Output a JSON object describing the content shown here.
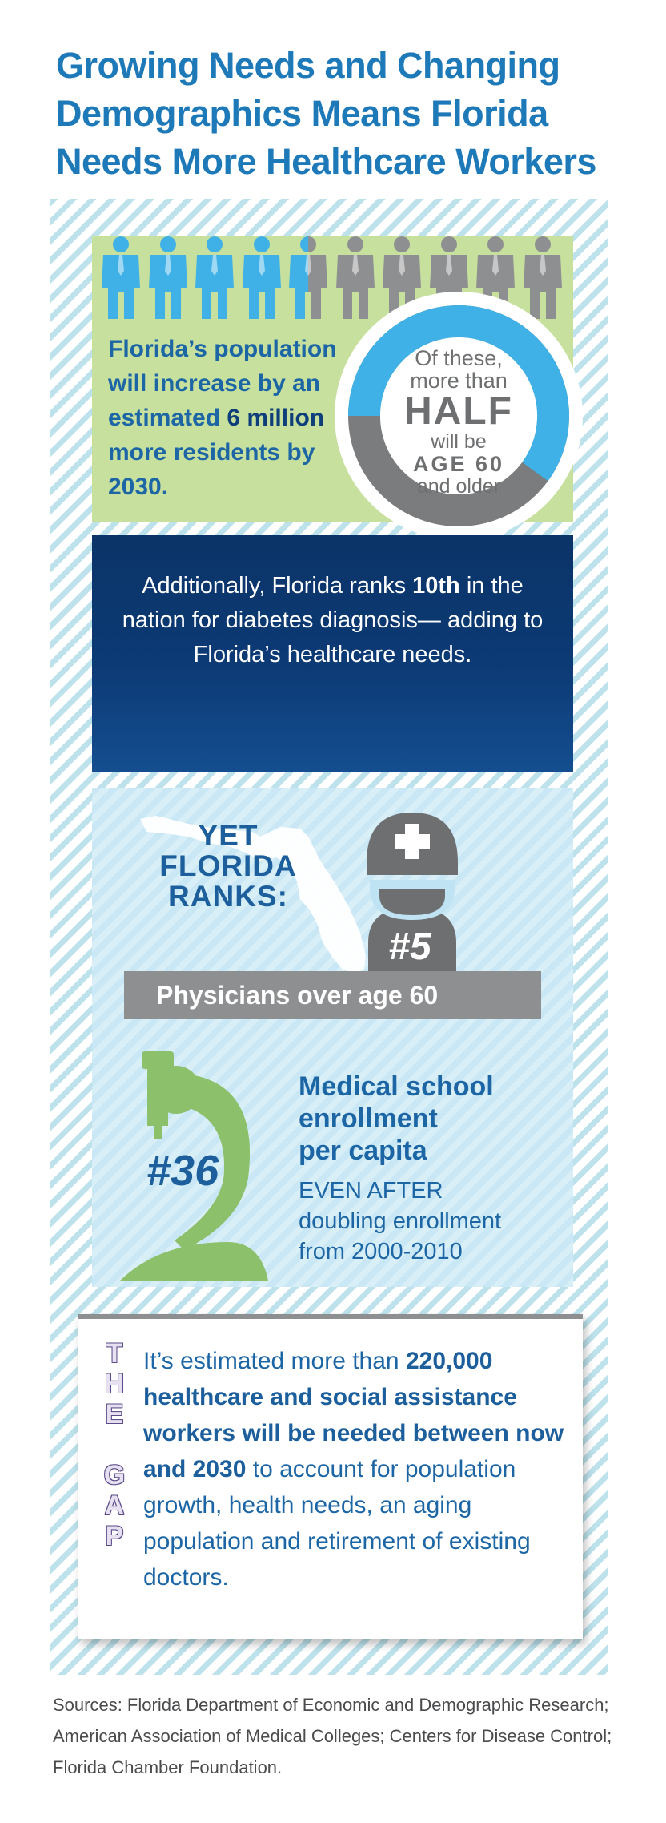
{
  "title": "Growing Needs and Changing\nDemographics Means Florida\nNeeds More Healthcare Workers",
  "colors": {
    "blue_person": "#3fb1e6",
    "gray_person": "#8e8f91",
    "green_panel": "#c7e09e",
    "navy_panel": "#0c3a75"
  },
  "population": {
    "people_total": 10,
    "people_highlighted": 4.5,
    "text_pre": "Florida’s population will increase by an estimated",
    "text_emphasis": "6 million",
    "text_post": "more residents by 2030.",
    "ring_fraction_blue": 0.6
  },
  "ring": {
    "line1": "Of these,",
    "line2": "more than",
    "line3": "HALF",
    "line4": "will be",
    "line5": "AGE 60",
    "line6": "and older"
  },
  "diabetes": {
    "pre": "Additionally, Florida ranks",
    "emphasis": "10th",
    "post": "in the nation for diabetes diagnosis— adding to Florida’s healthcare needs."
  },
  "ranks": {
    "header": "YET\nFLORIDA\nRANKS:",
    "physicians_rank": "#5",
    "physicians_label": "Physicians over age 60",
    "med_rank": "#36",
    "med_title": "Medical school\nenrollment\nper capita",
    "med_sub": "EVEN AFTER\ndoubling enrollment\nfrom 2000-2010"
  },
  "gap": {
    "label": [
      "T",
      "H",
      "E",
      "",
      "G",
      "A",
      "P"
    ],
    "text_pre": "It’s estimated more than",
    "text_bold": "220,000 healthcare and social assistance workers will be needed between now and 2030",
    "text_post": "to account for population growth, health needs, an aging population and retirement of existing doctors."
  },
  "sources": "Sources: Florida Department of Economic and Demographic Research; American Association of Medical Colleges; Centers for Disease Control; Florida Chamber Foundation."
}
